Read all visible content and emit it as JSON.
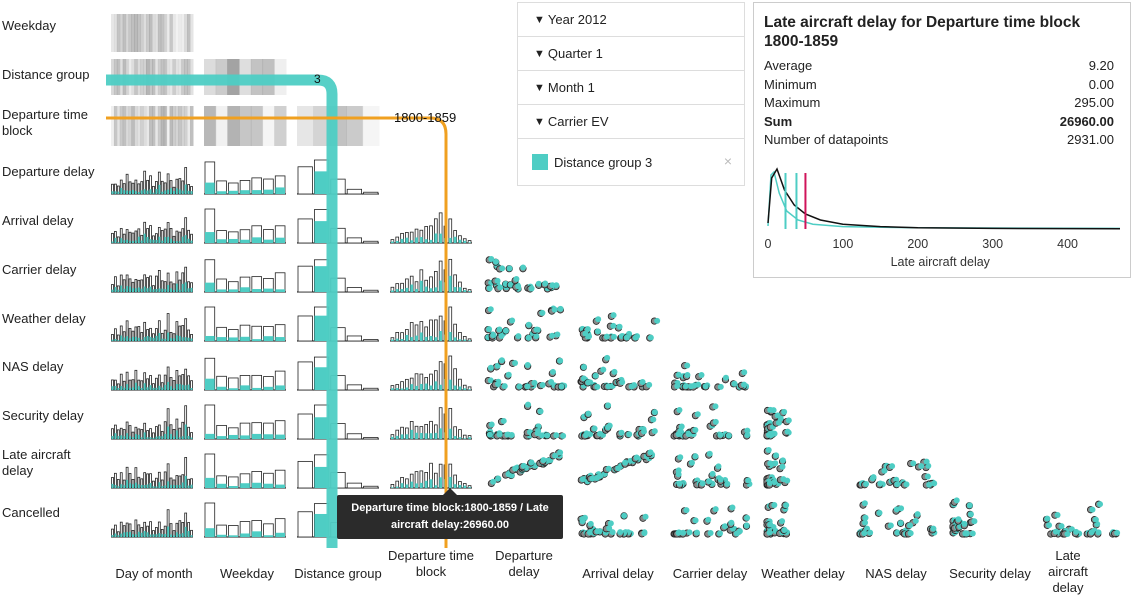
{
  "chart_data": {
    "type": "scatter",
    "title": "",
    "rows": [
      "Weekday",
      "Distance group",
      "Departure time block",
      "Departure delay",
      "Arrival delay",
      "Carrier delay",
      "Weather delay",
      "NAS delay",
      "Security delay",
      "Late aircraft delay",
      "Cancelled"
    ],
    "columns": [
      "Day of month",
      "Weekday",
      "Distance group",
      "Departure time block",
      "Departure delay",
      "Arrival delay",
      "Carrier delay",
      "Weather delay",
      "NAS delay",
      "Security delay",
      "Late aircraft delay"
    ],
    "highlight_color": "#4ecdc4",
    "crosshair_color": "#f0a020",
    "selected_distance_label": "3",
    "selected_time_label": "1800-1859",
    "row_labels": {
      "weekday": "Weekday",
      "distance_group": "Distance group",
      "departure_time_block": "Departure time block",
      "departure_delay": "Departure delay",
      "arrival_delay": "Arrival delay",
      "carrier_delay": "Carrier delay",
      "weather_delay": "Weather delay",
      "nas_delay": "NAS delay",
      "security_delay": "Security delay",
      "late_aircraft_delay": "Late aircraft delay",
      "cancelled": "Cancelled"
    },
    "col_labels": {
      "day_of_month": "Day of month",
      "weekday": "Weekday",
      "distance_group": "Distance group",
      "departure_time_block": "Departure time block",
      "departure_delay": "Departure delay",
      "arrival_delay": "Arrival delay",
      "carrier_delay": "Carrier delay",
      "weather_delay": "Weather delay",
      "nas_delay": "NAS delay",
      "security_delay": "Security delay",
      "late_aircraft_delay": "Late aircraft delay"
    },
    "bars": {
      "day_of_month": [
        0.3,
        0.45,
        0.25,
        0.5,
        0.35,
        0.6,
        0.4,
        0.3,
        0.55,
        0.45,
        0.35,
        0.7,
        0.4,
        0.5,
        0.3,
        0.45,
        0.6,
        0.35,
        0.5,
        0.85,
        0.4,
        0.3,
        0.55,
        0.45,
        0.6,
        1.0,
        0.4,
        0.3
      ],
      "weekday": [
        1.0,
        0.4,
        0.35,
        0.45,
        0.5,
        0.45,
        0.55
      ],
      "distance_group": [
        0.8,
        1.0,
        0.45,
        0.15,
        0.05
      ],
      "departure_time_block": [
        0.15,
        0.25,
        0.35,
        0.4,
        0.5,
        0.45,
        0.6,
        0.55,
        0.7,
        0.65,
        0.9,
        0.8,
        1.0,
        0.6,
        0.3,
        0.15,
        0.1
      ],
      "highlight_day": 0.3,
      "highlight_weekday": 0.25,
      "highlight_distance": [
        0,
        1.0,
        0,
        0,
        0
      ],
      "highlight_time": 0.35
    },
    "detail": {
      "title": "Late aircraft delay for Departure time block 1800-1859",
      "stats": [
        {
          "label": "Average",
          "value": "9.20"
        },
        {
          "label": "Minimum",
          "value": "0.00"
        },
        {
          "label": "Maximum",
          "value": "295.00"
        },
        {
          "label": "Sum",
          "value": "26960.00",
          "bold": true
        },
        {
          "label": "Number of datapoints",
          "value": "2931.00"
        }
      ],
      "xlabel": "Late aircraft delay",
      "xticks": [
        0,
        100,
        200,
        300,
        400
      ],
      "xlim": [
        0,
        470
      ],
      "average_line": 38,
      "overall_line": 10,
      "selected_line": 50,
      "curve_black": [
        [
          0,
          0.1
        ],
        [
          5,
          0.85
        ],
        [
          12,
          1.0
        ],
        [
          22,
          0.65
        ],
        [
          35,
          0.4
        ],
        [
          50,
          0.25
        ],
        [
          70,
          0.15
        ],
        [
          100,
          0.08
        ],
        [
          150,
          0.04
        ],
        [
          200,
          0.02
        ],
        [
          300,
          0.01
        ],
        [
          470,
          0.005
        ]
      ],
      "curve_cyan": [
        [
          0,
          0.05
        ],
        [
          4,
          0.9
        ],
        [
          8,
          0.95
        ],
        [
          15,
          0.6
        ],
        [
          25,
          0.3
        ],
        [
          40,
          0.15
        ],
        [
          60,
          0.08
        ],
        [
          100,
          0.04
        ],
        [
          200,
          0.02
        ],
        [
          470,
          0.01
        ]
      ]
    }
  },
  "filters": [
    {
      "label": "Year 2012"
    },
    {
      "label": "Quarter 1"
    },
    {
      "label": "Month 1"
    },
    {
      "label": "Carrier EV"
    }
  ],
  "selection": {
    "label": "Distance group 3",
    "close": "×"
  },
  "tooltip": {
    "line1": "Departure time block:1800-1859 / Late",
    "line2": "aircraft delay:26960.00"
  }
}
